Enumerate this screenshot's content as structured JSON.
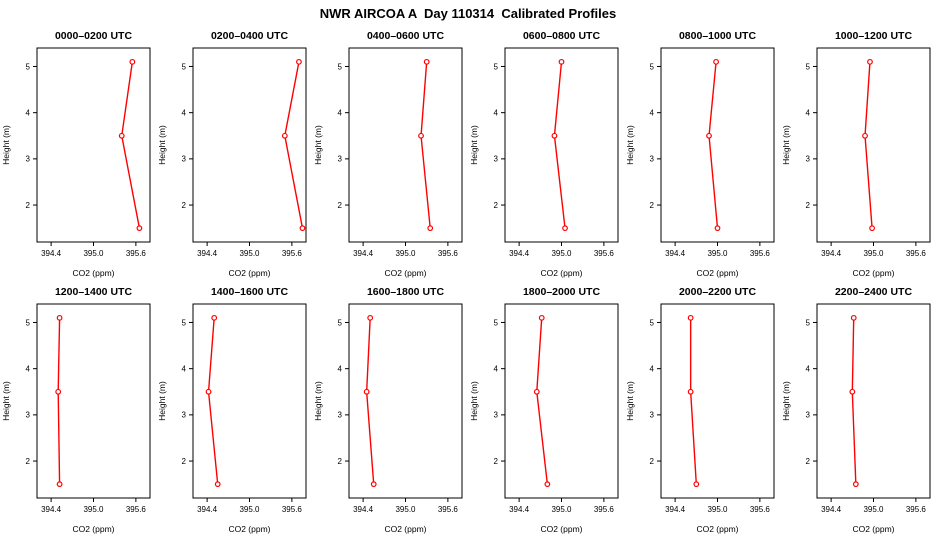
{
  "page_title": "NWR AIRCOA A  Day 110314  Calibrated Profiles",
  "chart_data": {
    "type": "line",
    "title": "NWR AIRCOA A  Day 110314  Calibrated Profiles",
    "xlabel": "CO2 (ppm)",
    "ylabel": "Height (m)",
    "xlim": [
      394.2,
      395.8
    ],
    "ylim": [
      1.2,
      5.4
    ],
    "xticks": [
      394.4,
      395.0,
      395.6
    ],
    "yticks": [
      2,
      3,
      4,
      5
    ],
    "grid": false,
    "legend": "none",
    "layout": {
      "rows": 2,
      "cols": 6
    },
    "series_color": "#ff0000",
    "heights": [
      1.5,
      3.5,
      5.1
    ],
    "panels": [
      {
        "title": "0000–0200 UTC",
        "co2": [
          395.65,
          395.4,
          395.55
        ]
      },
      {
        "title": "0200–0400 UTC",
        "co2": [
          395.75,
          395.5,
          395.7
        ]
      },
      {
        "title": "0400–0600 UTC",
        "co2": [
          395.35,
          395.22,
          395.3
        ]
      },
      {
        "title": "0600–0800 UTC",
        "co2": [
          395.05,
          394.9,
          395.0
        ]
      },
      {
        "title": "0800–1000 UTC",
        "co2": [
          395.0,
          394.88,
          394.98
        ]
      },
      {
        "title": "1000–1200 UTC",
        "co2": [
          394.98,
          394.88,
          394.95
        ]
      },
      {
        "title": "1200–1400 UTC",
        "co2": [
          394.52,
          394.5,
          394.52
        ]
      },
      {
        "title": "1400–1600 UTC",
        "co2": [
          394.55,
          394.42,
          394.5
        ]
      },
      {
        "title": "1600–1800 UTC",
        "co2": [
          394.55,
          394.45,
          394.5
        ]
      },
      {
        "title": "1800–2000 UTC",
        "co2": [
          394.8,
          394.65,
          394.72
        ]
      },
      {
        "title": "2000–2200 UTC",
        "co2": [
          394.7,
          394.62,
          394.62
        ]
      },
      {
        "title": "2200–2400 UTC",
        "co2": [
          394.75,
          394.7,
          394.72
        ]
      }
    ]
  }
}
